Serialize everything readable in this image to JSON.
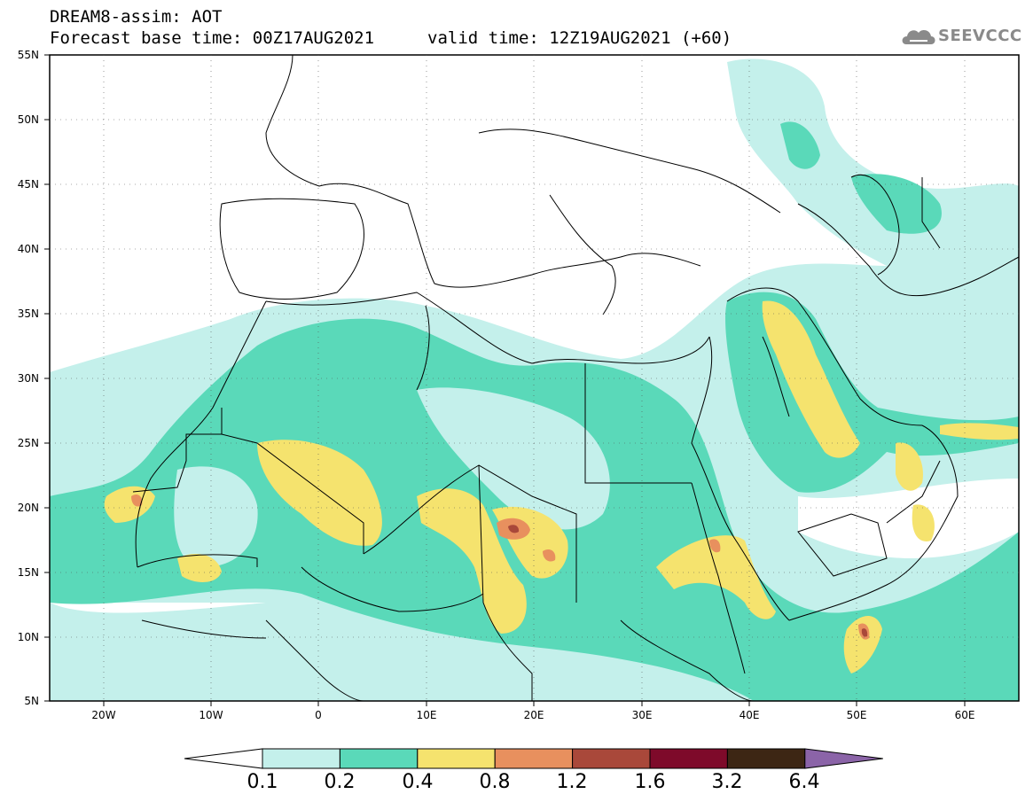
{
  "header": {
    "line1": "DREAM8-assim: AOT",
    "line2": "Forecast base time: 00Z17AUG2021",
    "valid": "valid time: 12Z19AUG2021 (+60)"
  },
  "logo": {
    "text": "SEEVCCC",
    "icon": "cloud-icon"
  },
  "map": {
    "lat_labels": [
      "55N",
      "50N",
      "45N",
      "40N",
      "35N",
      "30N",
      "25N",
      "20N",
      "15N",
      "10N",
      "5N"
    ],
    "lon_labels": [
      "20W",
      "10W",
      "0",
      "10E",
      "20E",
      "30E",
      "40E",
      "50E",
      "60E"
    ],
    "lon_range": [
      -25,
      65
    ],
    "lat_range": [
      5,
      55
    ],
    "variable": "AOT"
  },
  "colorbar": {
    "labels": [
      "0.1",
      "0.2",
      "0.4",
      "0.8",
      "1.2",
      "1.6",
      "3.2",
      "6.4"
    ],
    "colors": [
      "#ffffff",
      "#c4f0eb",
      "#5ad9b9",
      "#f5e36e",
      "#e8905e",
      "#a9483a",
      "#7e0a2a",
      "#3d2614",
      "#8b64a8"
    ]
  }
}
